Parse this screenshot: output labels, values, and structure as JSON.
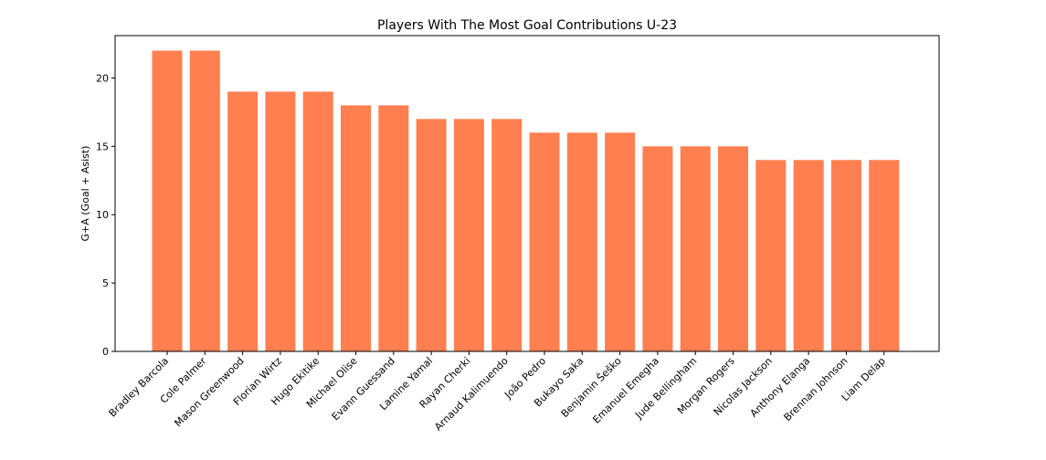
{
  "chart_data": {
    "type": "bar",
    "title": "Players With The Most Goal Contributions U-23",
    "xlabel": "",
    "ylabel": "G+A (Goal + Asist)",
    "categories": [
      "Bradley Barcola",
      "Cole Palmer",
      "Mason Greenwood",
      "Florian Wirtz",
      "Hugo Ekitike",
      "Michael Olise",
      "Evann Guessand",
      "Lamine Yamal",
      "Rayan Cherki",
      "Arnaud Kalimuendo",
      "João Pedro",
      "Bukayo Saka",
      "Benjamin Šeško",
      "Emanuel Emegha",
      "Jude Bellingham",
      "Morgan Rogers",
      "Nicolas Jackson",
      "Anthony Elanga",
      "Brennan Johnson",
      "Liam Delap"
    ],
    "values": [
      22,
      22,
      19,
      19,
      19,
      18,
      18,
      17,
      17,
      17,
      16,
      16,
      16,
      15,
      15,
      15,
      14,
      14,
      14,
      14
    ],
    "ylim": [
      0,
      23.1
    ],
    "yticks": [
      0,
      5,
      10,
      15,
      20
    ],
    "grid": false,
    "legend": "none",
    "bar_color": "#ff7f50",
    "axis_color": "#000000"
  }
}
